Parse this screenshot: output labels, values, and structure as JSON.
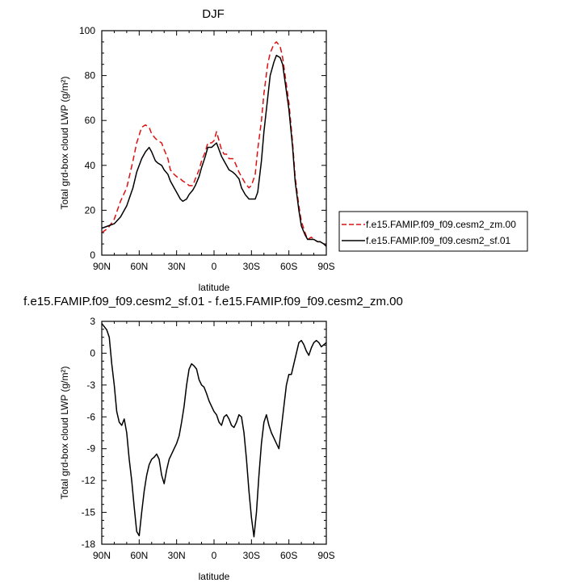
{
  "chart_data": [
    {
      "type": "line",
      "title": "DJF",
      "xlabel": "latitude",
      "ylabel": "Total grd-box cloud LWP (g/m²)",
      "xlim": [
        90,
        -90
      ],
      "ylim": [
        0,
        100
      ],
      "xticks": [
        {
          "value": 90,
          "label": "90N"
        },
        {
          "value": 60,
          "label": "60N"
        },
        {
          "value": 30,
          "label": "30N"
        },
        {
          "value": 0,
          "label": "0"
        },
        {
          "value": -30,
          "label": "30S"
        },
        {
          "value": -60,
          "label": "60S"
        },
        {
          "value": -90,
          "label": "90S"
        }
      ],
      "yticks": [
        0,
        20,
        40,
        60,
        80,
        100
      ],
      "legend_position": "right",
      "series": [
        {
          "name": "f.e15.FAMIP.f09_f09.cesm2_zm.00",
          "color": "#dd1111",
          "dash": "dashed",
          "x": [
            90,
            85,
            80,
            75,
            70,
            65,
            62,
            58,
            55,
            52,
            50,
            47,
            45,
            42,
            40,
            37,
            35,
            32,
            30,
            27,
            25,
            22,
            20,
            17,
            15,
            12,
            10,
            7,
            5,
            2,
            0,
            -2,
            -4,
            -6,
            -8,
            -10,
            -12,
            -15,
            -17,
            -20,
            -22,
            -25,
            -28,
            -30,
            -33,
            -35,
            -38,
            -40,
            -43,
            -45,
            -48,
            -50,
            -53,
            -55,
            -57,
            -60,
            -63,
            -65,
            -68,
            -70,
            -73,
            -75,
            -78,
            -80,
            -83,
            -85,
            -88,
            -90
          ],
          "values": [
            10,
            12,
            16,
            24,
            30,
            42,
            50,
            57,
            58,
            57,
            54,
            52,
            51,
            50,
            47,
            43,
            38,
            36,
            35,
            34,
            33,
            32,
            31,
            31,
            34,
            38,
            42,
            46,
            50,
            50,
            51,
            55,
            51,
            47,
            45,
            45,
            43,
            43,
            41,
            37,
            35,
            32,
            30,
            31,
            36,
            47,
            60,
            72,
            85,
            90,
            94,
            95,
            93,
            88,
            80,
            68,
            50,
            35,
            22,
            15,
            10,
            7,
            8,
            7,
            6,
            6,
            5,
            4
          ]
        },
        {
          "name": "f.e15.FAMIP.f09_f09.cesm2_sf.01",
          "color": "#000000",
          "dash": "solid",
          "x": [
            90,
            85,
            80,
            75,
            70,
            65,
            62,
            58,
            55,
            52,
            50,
            47,
            45,
            42,
            40,
            37,
            35,
            32,
            30,
            27,
            25,
            22,
            20,
            17,
            15,
            12,
            10,
            7,
            5,
            2,
            0,
            -2,
            -4,
            -6,
            -8,
            -10,
            -12,
            -15,
            -17,
            -20,
            -22,
            -25,
            -28,
            -30,
            -33,
            -35,
            -38,
            -40,
            -43,
            -45,
            -48,
            -50,
            -53,
            -55,
            -57,
            -60,
            -63,
            -65,
            -68,
            -70,
            -73,
            -75,
            -78,
            -80,
            -83,
            -85,
            -88,
            -90
          ],
          "values": [
            12,
            13,
            14,
            17,
            22,
            30,
            37,
            43,
            46,
            48,
            46,
            42,
            41,
            40,
            38,
            36,
            33,
            30,
            28,
            25,
            24,
            25,
            27,
            29,
            31,
            35,
            39,
            44,
            48,
            48,
            49,
            50,
            47,
            44,
            42,
            40,
            38,
            37,
            36,
            34,
            30,
            27,
            25,
            25,
            25,
            28,
            42,
            55,
            70,
            80,
            86,
            89,
            88,
            85,
            77,
            65,
            48,
            33,
            20,
            13,
            9,
            7,
            7,
            7,
            6,
            6,
            5,
            4
          ]
        }
      ]
    },
    {
      "type": "line",
      "title": "f.e15.FAMIP.f09_f09.cesm2_sf.01 - f.e15.FAMIP.f09_f09.cesm2_zm.00",
      "xlabel": "latitude",
      "ylabel": "Total grd-box cloud LWP (g/m²)",
      "xlim": [
        90,
        -90
      ],
      "ylim": [
        -18,
        3
      ],
      "xticks": [
        {
          "value": 90,
          "label": "90N"
        },
        {
          "value": 60,
          "label": "60N"
        },
        {
          "value": 30,
          "label": "30N"
        },
        {
          "value": 0,
          "label": "0"
        },
        {
          "value": -30,
          "label": "30S"
        },
        {
          "value": -60,
          "label": "60S"
        },
        {
          "value": -90,
          "label": "90S"
        }
      ],
      "yticks": [
        3,
        0,
        -3,
        -6,
        -9,
        -12,
        -15,
        -18
      ],
      "series": [
        {
          "color": "#000000",
          "dash": "solid",
          "x": [
            90,
            88,
            86,
            84,
            82,
            80,
            78,
            76,
            74,
            72,
            70,
            68,
            66,
            64,
            62,
            60,
            58,
            56,
            54,
            52,
            50,
            48,
            46,
            44,
            42,
            40,
            38,
            36,
            34,
            32,
            30,
            28,
            26,
            24,
            22,
            20,
            18,
            16,
            14,
            12,
            10,
            8,
            6,
            4,
            2,
            0,
            -2,
            -4,
            -6,
            -8,
            -10,
            -12,
            -14,
            -16,
            -18,
            -20,
            -22,
            -24,
            -26,
            -28,
            -30,
            -32,
            -34,
            -36,
            -38,
            -40,
            -42,
            -44,
            -46,
            -48,
            -50,
            -52,
            -54,
            -56,
            -58,
            -60,
            -62,
            -64,
            -66,
            -68,
            -70,
            -72,
            -74,
            -76,
            -78,
            -80,
            -82,
            -84,
            -86,
            -88,
            -90
          ],
          "values": [
            2.8,
            2.5,
            2.2,
            1.5,
            -1.0,
            -3.0,
            -5.5,
            -6.5,
            -6.8,
            -6.2,
            -7.5,
            -10.0,
            -12.0,
            -14.5,
            -16.8,
            -17.2,
            -15.0,
            -13.0,
            -11.5,
            -10.5,
            -10.0,
            -9.8,
            -9.5,
            -10.0,
            -11.5,
            -12.3,
            -11.0,
            -10.0,
            -9.5,
            -9.0,
            -8.5,
            -7.8,
            -6.5,
            -5.0,
            -3.0,
            -1.5,
            -1.0,
            -1.2,
            -1.5,
            -2.5,
            -3.0,
            -3.2,
            -3.8,
            -4.5,
            -5.0,
            -5.5,
            -5.8,
            -6.5,
            -6.8,
            -6.0,
            -5.8,
            -6.2,
            -6.8,
            -7.0,
            -6.5,
            -5.8,
            -6.0,
            -7.5,
            -10.0,
            -13.0,
            -15.5,
            -17.3,
            -15.0,
            -11.5,
            -8.5,
            -6.5,
            -5.8,
            -6.8,
            -7.5,
            -8.0,
            -8.5,
            -9.0,
            -7.0,
            -5.0,
            -3.0,
            -2.0,
            -2.0,
            -1.0,
            0.0,
            1.0,
            1.2,
            0.8,
            0.2,
            -0.2,
            0.5,
            1.0,
            1.2,
            1.0,
            0.6,
            0.8,
            1.0
          ]
        }
      ]
    }
  ]
}
